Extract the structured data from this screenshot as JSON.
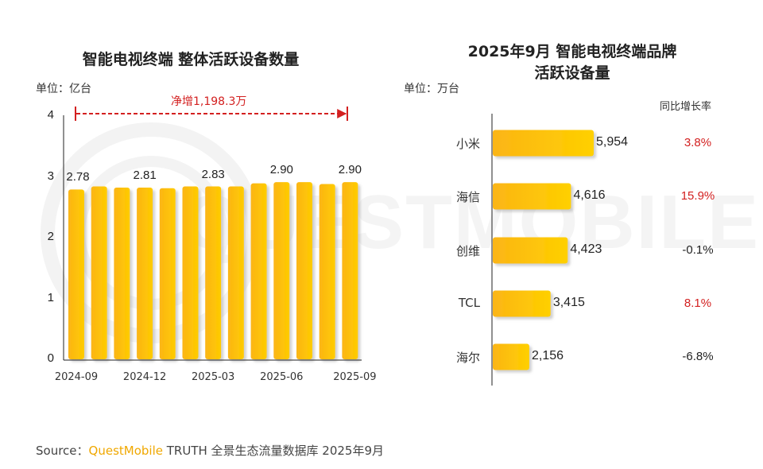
{
  "watermark": "QUESTMOBILE",
  "colors": {
    "bar_light": "#ffcc00",
    "bar_dark": "#fbb515",
    "positive_growth": "#d32020",
    "neutral": "#222222",
    "annotation": "#d32020"
  },
  "chart_data": [
    {
      "type": "bar",
      "title": "智能电视终端 整体活跃设备数量",
      "unit_label": "单位：亿台",
      "categories": [
        "2024-09",
        "2024-10",
        "2024-11",
        "2024-12",
        "2025-01",
        "2025-02",
        "2025-03",
        "2025-04",
        "2025-05",
        "2025-06",
        "2025-07",
        "2025-08",
        "2025-09"
      ],
      "xtick_labels": [
        "2024-09",
        "2024-12",
        "2025-03",
        "2025-06",
        "2025-09"
      ],
      "values": [
        2.78,
        2.83,
        2.81,
        2.81,
        2.8,
        2.83,
        2.83,
        2.83,
        2.88,
        2.9,
        2.9,
        2.87,
        2.9
      ],
      "data_labels": [
        {
          "category": "2024-09",
          "text": "2.78"
        },
        {
          "category": "2024-12",
          "text": "2.81"
        },
        {
          "category": "2025-03",
          "text": "2.83"
        },
        {
          "category": "2025-06",
          "text": "2.90"
        },
        {
          "category": "2025-09",
          "text": "2.90"
        }
      ],
      "yticks": [
        "0",
        "1",
        "2",
        "3",
        "4"
      ],
      "ylim": [
        0,
        4
      ],
      "annotation": "净增1,198.3万",
      "grid": false
    },
    {
      "type": "bar",
      "orientation": "horizontal",
      "title_line1": "2025年9月 智能电视终端品牌",
      "title_line2": "活跃设备量",
      "unit_label": "单位：万台",
      "yoy_header": "同比增长率",
      "categories": [
        "小米",
        "海信",
        "创维",
        "TCL",
        "海尔"
      ],
      "values": [
        5954,
        4616,
        4423,
        3415,
        2156
      ],
      "value_labels": [
        "5,954",
        "4,616",
        "4,423",
        "3,415",
        "2,156"
      ],
      "yoy": [
        "3.8%",
        "15.9%",
        "-0.1%",
        "8.1%",
        "-6.8%"
      ],
      "yoy_positive": [
        true,
        true,
        false,
        true,
        false
      ],
      "xlim": [
        0,
        6000
      ],
      "grid": false
    }
  ],
  "source": {
    "prefix": "Source：",
    "brand": "QuestMobile",
    "rest": " TRUTH 全景生态流量数据库 2025年9月"
  }
}
